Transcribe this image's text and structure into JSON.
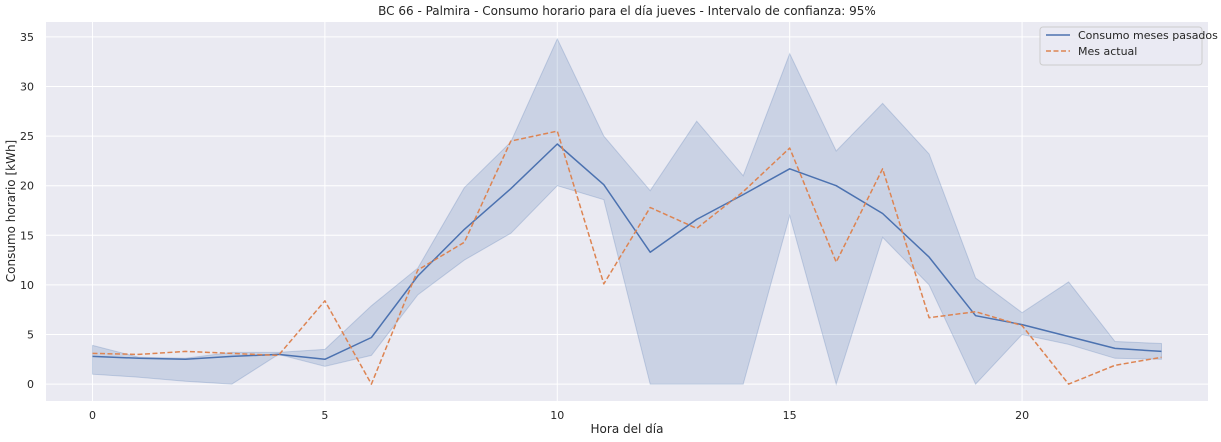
{
  "chart_data": {
    "type": "line",
    "title": "BC 66 - Palmira - Consumo horario para el día jueves - Intervalo de confianza: 95%",
    "xlabel": "Hora del día",
    "ylabel": "Consumo horario [kWh]",
    "xlim": [
      -1,
      24
    ],
    "ylim": [
      -1.7,
      36.5
    ],
    "xticks": [
      0,
      5,
      10,
      15,
      20
    ],
    "yticks": [
      0,
      5,
      10,
      15,
      20,
      25,
      30,
      35
    ],
    "grid": true,
    "legend_position": "top-right",
    "x": [
      0,
      1,
      2,
      3,
      4,
      5,
      6,
      7,
      8,
      9,
      10,
      11,
      12,
      13,
      14,
      15,
      16,
      17,
      18,
      19,
      20,
      21,
      22,
      23
    ],
    "series": [
      {
        "name": "Consumo meses pasados",
        "style": "solid",
        "color": "#4c72b0",
        "values": [
          2.8,
          2.6,
          2.5,
          2.8,
          3.0,
          2.5,
          4.7,
          10.9,
          15.6,
          19.7,
          24.2,
          20.1,
          13.3,
          16.6,
          19.1,
          21.7,
          20.0,
          17.2,
          12.8,
          6.9,
          6.0,
          4.8,
          3.6,
          3.3
        ],
        "ci_lower": [
          1.0,
          0.7,
          0.3,
          0.0,
          3.0,
          1.8,
          2.9,
          9.0,
          12.5,
          15.2,
          20.0,
          18.6,
          0.0,
          0.0,
          0.0,
          17.0,
          0.0,
          14.8,
          10.0,
          0.0,
          5.0,
          4.0,
          2.6,
          2.5
        ],
        "ci_upper": [
          3.9,
          2.7,
          2.6,
          3.2,
          3.2,
          3.5,
          7.9,
          11.7,
          19.8,
          24.4,
          34.8,
          25.0,
          19.5,
          26.5,
          21.0,
          33.3,
          23.5,
          28.3,
          23.2,
          10.7,
          7.2,
          10.3,
          4.3,
          4.1
        ]
      },
      {
        "name": "Mes actual",
        "style": "dashed",
        "color": "#dd8452",
        "values": [
          3.1,
          3.0,
          3.3,
          3.1,
          2.9,
          8.4,
          0.0,
          11.5,
          14.3,
          24.5,
          25.5,
          10.1,
          17.8,
          15.7,
          19.4,
          23.8,
          12.3,
          21.7,
          6.7,
          7.3,
          5.9,
          0.0,
          1.9,
          2.7
        ]
      }
    ],
    "colors": {
      "axes_background": "#eaeaf2",
      "grid": "#ffffff",
      "ci_fill": "#4c72b0"
    }
  }
}
